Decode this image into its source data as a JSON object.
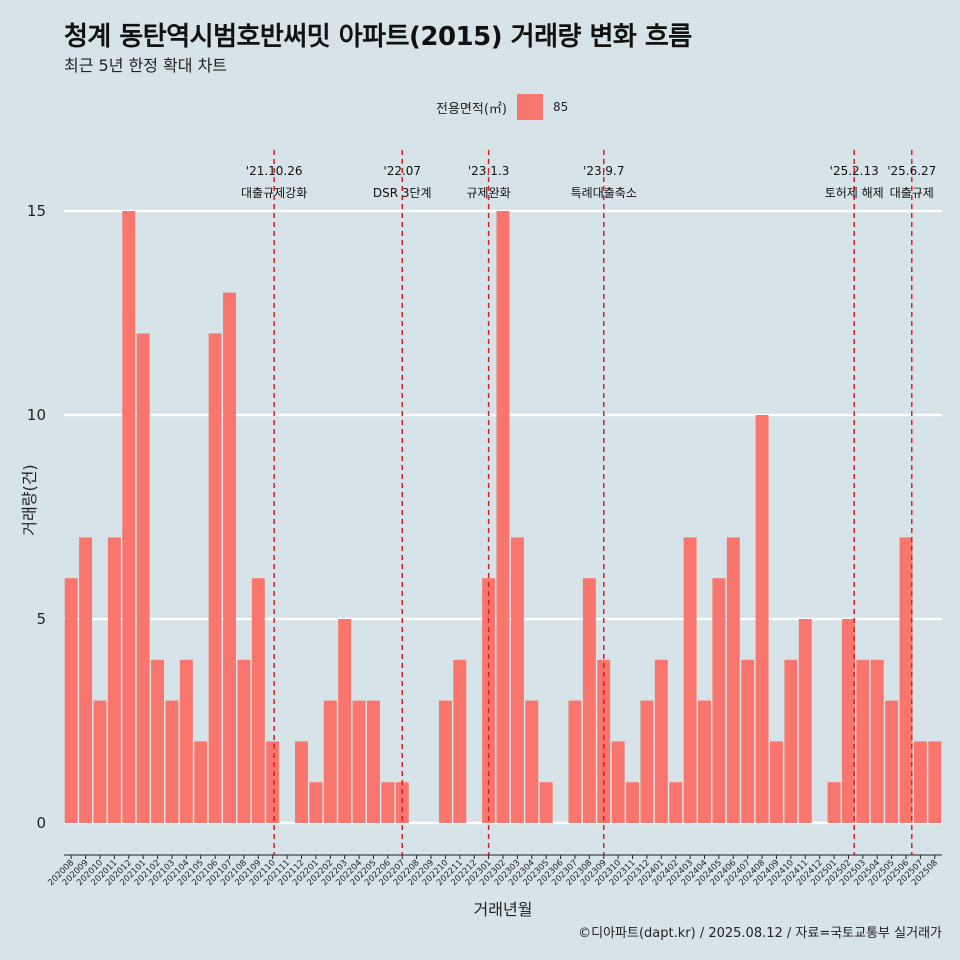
{
  "title": "청계 동탄역시범호반써밋 아파트(2015) 거래량 변화 흐름",
  "subtitle": "최근 5년 한정 확대 차트",
  "caption": "©디아파트(dapt.kr) / 2025.08.12 / 자료=국토교통부 실거래가",
  "legend": {
    "title": "전용면적(㎡)",
    "items": [
      {
        "label": "85",
        "color": "#f8766d"
      }
    ]
  },
  "colors": {
    "bar": "#f8766d",
    "event_line": "#e41a1c",
    "background": "#d6e4ea",
    "grid": "#ffffff"
  },
  "chart_data": {
    "type": "bar",
    "title": "청계 동탄역시범호반써밋 아파트(2015) 거래량 변화 흐름",
    "subtitle": "최근 5년 한정 확대 차트",
    "xlabel": "거래년월",
    "ylabel": "거래량(건)",
    "ylim": [
      0,
      15
    ],
    "yticks": [
      0,
      5,
      10,
      15
    ],
    "grid": true,
    "legend_position": "top",
    "categories": [
      "202008",
      "202009",
      "202010",
      "202011",
      "202012",
      "202101",
      "202102",
      "202103",
      "202104",
      "202105",
      "202106",
      "202107",
      "202108",
      "202109",
      "202110",
      "202111",
      "202112",
      "202201",
      "202202",
      "202203",
      "202204",
      "202205",
      "202206",
      "202207",
      "202208",
      "202209",
      "202210",
      "202211",
      "202212",
      "202301",
      "202302",
      "202303",
      "202304",
      "202305",
      "202306",
      "202307",
      "202308",
      "202309",
      "202310",
      "202311",
      "202312",
      "202401",
      "202402",
      "202403",
      "202404",
      "202405",
      "202406",
      "202407",
      "202408",
      "202409",
      "202410",
      "202411",
      "202412",
      "202501",
      "202502",
      "202503",
      "202504",
      "202505",
      "202506",
      "202507",
      "202508"
    ],
    "series": [
      {
        "name": "85",
        "values": [
          6,
          7,
          3,
          7,
          15,
          12,
          4,
          3,
          4,
          2,
          12,
          13,
          4,
          6,
          2,
          0,
          2,
          1,
          3,
          5,
          3,
          3,
          1,
          1,
          0,
          0,
          3,
          4,
          0,
          6,
          15,
          7,
          3,
          1,
          0,
          3,
          6,
          4,
          2,
          1,
          3,
          4,
          1,
          7,
          3,
          6,
          7,
          4,
          10,
          2,
          4,
          5,
          0,
          1,
          5,
          4,
          4,
          3,
          7,
          2,
          2
        ]
      }
    ],
    "annotations": [
      {
        "date": "'21.10.26",
        "label": "대출규제강화",
        "position": 14.1
      },
      {
        "date": "'22.07",
        "label": "DSR 3단계",
        "position": 23.0
      },
      {
        "date": "'23.1.3",
        "label": "규제완화",
        "position": 29.0
      },
      {
        "date": "'23.9.7",
        "label": "특례대출축소",
        "position": 37.0
      },
      {
        "date": "'25.2.13",
        "label": "토허제 해제",
        "position": 54.4
      },
      {
        "date": "'25.6.27",
        "label": "대출규제",
        "position": 58.4
      }
    ]
  }
}
